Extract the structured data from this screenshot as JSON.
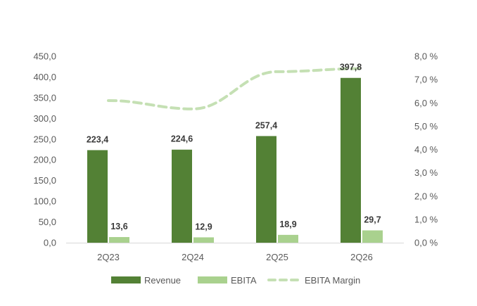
{
  "chart_data": {
    "type": "bar",
    "title": "",
    "categories": [
      "2Q23",
      "2Q24",
      "2Q25",
      "2Q26"
    ],
    "series": [
      {
        "name": "Revenue",
        "kind": "bar",
        "axis": "left",
        "color": "#538135",
        "values": [
          223.4,
          224.6,
          257.4,
          397.8
        ],
        "labels": [
          "223,4",
          "224,6",
          "257,4",
          "397,8"
        ]
      },
      {
        "name": "EBITA",
        "kind": "bar",
        "axis": "left",
        "color": "#A9D18E",
        "values": [
          13.6,
          12.9,
          18.9,
          29.7
        ],
        "labels": [
          "13,6",
          "12,9",
          "18,9",
          "29,7"
        ]
      },
      {
        "name": "EBITA Margin",
        "kind": "line",
        "style": "dashed",
        "axis": "right",
        "color": "#C5E0B4",
        "values": [
          6.1,
          5.74,
          7.34,
          7.47
        ]
      }
    ],
    "y_left": {
      "range": [
        0,
        450
      ],
      "ticks": [
        0,
        50,
        100,
        150,
        200,
        250,
        300,
        350,
        400,
        450
      ],
      "tick_labels": [
        "0,0",
        "50,0",
        "100,0",
        "150,0",
        "200,0",
        "250,0",
        "300,0",
        "350,0",
        "400,0",
        "450,0"
      ]
    },
    "y_right": {
      "range": [
        0,
        8
      ],
      "ticks": [
        0,
        1,
        2,
        3,
        4,
        5,
        6,
        7,
        8
      ],
      "tick_labels": [
        "0,0 %",
        "1,0 %",
        "2,0 %",
        "3,0 %",
        "4,0 %",
        "5,0 %",
        "6,0 %",
        "7,0 %",
        "8,0 %"
      ]
    },
    "grid": false,
    "legend": {
      "position": "bottom",
      "entries": [
        "Revenue",
        "EBITA",
        "EBITA Margin"
      ]
    }
  }
}
